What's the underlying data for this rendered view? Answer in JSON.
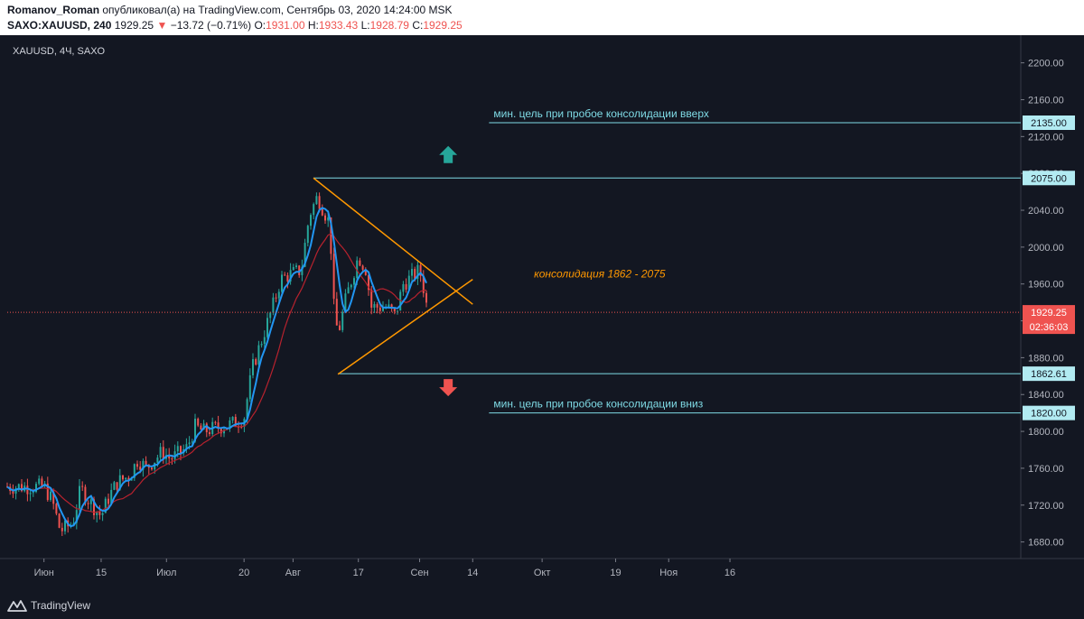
{
  "header": {
    "author": "Romanov_Roman",
    "published_text": " опубликовал(а) на TradingView.com, Сентябрь 03, 2020 14:24:00 MSK",
    "symbol": "SAXO:XAUUSD, 240",
    "last": "1929.25",
    "change_arrow": "▼",
    "change": "−13.72 (−0.71%)",
    "o_label": "O:",
    "o_value": "1931.00",
    "h_label": "H:",
    "h_value": "1933.43",
    "l_label": "L:",
    "l_value": "1928.79",
    "c_label": "C:",
    "c_value": "1929.25"
  },
  "chart_label": "XAUUSD, 4Ч, SAXO",
  "footer": {
    "logo_text": "TradingView"
  },
  "colors": {
    "background": "#131722",
    "up": "#26a69a",
    "down": "#ef5350",
    "ma_fast": "#2196f3",
    "ma_slow": "#b7222e",
    "triangle": "#ff9800",
    "level_line": "#7fdbe6",
    "price_line": "#ef5350"
  },
  "annotations": {
    "target_up": "мин. цель при пробое консолидации вверх",
    "target_down": "мин. цель при пробое консолидации вниз",
    "consolidation": "консолидация 1862 - 2075"
  },
  "chart_data": {
    "type": "candlestick",
    "symbol": "XAUUSD",
    "timeframe": "4Ч",
    "x_ticks": [
      "Июн",
      "15",
      "Июл",
      "20",
      "Авг",
      "17",
      "Сен",
      "14",
      "Окт",
      "19",
      "Ноя",
      "16"
    ],
    "y_ticks": [
      "1680.00",
      "1720.00",
      "1760.00",
      "1800.00",
      "1840.00",
      "1880.00",
      "1920.00",
      "1960.00",
      "2000.00",
      "2040.00",
      "2080.00",
      "2120.00",
      "2160.00",
      "2200.00"
    ],
    "ylim": [
      1662,
      2230
    ],
    "price_path": [
      [
        "2020-06-01",
        1740
      ],
      [
        "2020-06-03",
        1725
      ],
      [
        "2020-06-05",
        1692
      ],
      [
        "2020-06-08",
        1700
      ],
      [
        "2020-06-10",
        1738
      ],
      [
        "2020-06-12",
        1725
      ],
      [
        "2020-06-15",
        1708
      ],
      [
        "2020-06-17",
        1730
      ],
      [
        "2020-06-19",
        1745
      ],
      [
        "2020-06-22",
        1752
      ],
      [
        "2020-06-24",
        1770
      ],
      [
        "2020-06-26",
        1760
      ],
      [
        "2020-06-30",
        1778
      ],
      [
        "2020-07-02",
        1770
      ],
      [
        "2020-07-06",
        1782
      ],
      [
        "2020-07-08",
        1805
      ],
      [
        "2020-07-10",
        1800
      ],
      [
        "2020-07-14",
        1805
      ],
      [
        "2020-07-17",
        1808
      ],
      [
        "2020-07-20",
        1815
      ],
      [
        "2020-07-22",
        1868
      ],
      [
        "2020-07-24",
        1895
      ],
      [
        "2020-07-27",
        1935
      ],
      [
        "2020-07-29",
        1965
      ],
      [
        "2020-07-31",
        1970
      ],
      [
        "2020-08-03",
        1975
      ],
      [
        "2020-08-05",
        2035
      ],
      [
        "2020-08-07",
        2055
      ],
      [
        "2020-08-10",
        2025
      ],
      [
        "2020-08-11",
        1935
      ],
      [
        "2020-08-12",
        1905
      ],
      [
        "2020-08-14",
        1945
      ],
      [
        "2020-08-17",
        1990
      ],
      [
        "2020-08-19",
        1975
      ],
      [
        "2020-08-20",
        1935
      ],
      [
        "2020-08-24",
        1935
      ],
      [
        "2020-08-26",
        1925
      ],
      [
        "2020-08-28",
        1960
      ],
      [
        "2020-09-01",
        1975
      ],
      [
        "2020-09-02",
        1955
      ],
      [
        "2020-09-03",
        1929.25
      ]
    ],
    "levels": [
      {
        "value": 2135.0,
        "label": "2135.00"
      },
      {
        "value": 2075.0,
        "label": "2075.00"
      },
      {
        "value": 1862.61,
        "label": "1862.61"
      },
      {
        "value": 1820.0,
        "label": "1820.00"
      }
    ],
    "last_price": {
      "value": 1929.25,
      "label": "1929.25",
      "countdown": "02:36:03"
    },
    "triangle": {
      "upper": [
        [
          "2020-08-06",
          2075
        ],
        [
          "2020-09-14",
          1938
        ]
      ],
      "lower": [
        [
          "2020-08-12",
          1862
        ],
        [
          "2020-09-14",
          1965
        ]
      ]
    }
  }
}
